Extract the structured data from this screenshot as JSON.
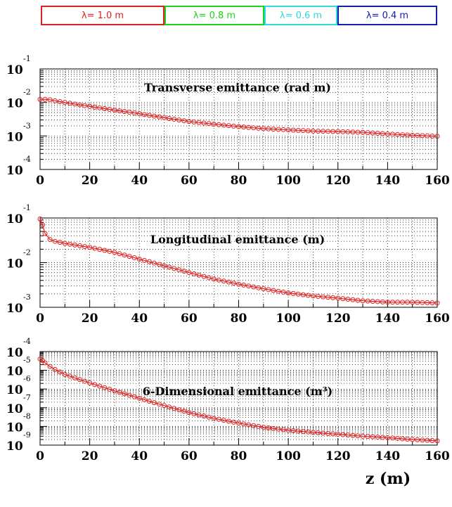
{
  "legend": [
    {
      "label": "λ= 1.0 m",
      "color": "#e02020"
    },
    {
      "label": "λ= 0.8 m",
      "color": "#20d020"
    },
    {
      "label": "λ= 0.6 m",
      "color": "#30d8e0"
    },
    {
      "label": "λ= 0.4 m",
      "color": "#1020b0"
    }
  ],
  "chart_data": [
    {
      "type": "scatter",
      "title": "Transverse emittance (rad m)",
      "xlabel": "",
      "ylabel": "",
      "log_y": true,
      "xlim": [
        0,
        160
      ],
      "ylim": [
        0.0001,
        0.1
      ],
      "x_ticks": [
        "0",
        "20",
        "40",
        "60",
        "80",
        "100",
        "120",
        "140",
        "160"
      ],
      "y_ticks": [
        {
          "base": "10",
          "exp": "-1"
        },
        {
          "base": "10",
          "exp": "-2"
        },
        {
          "base": "10",
          "exp": "-3"
        },
        {
          "base": "10",
          "exp": "-4"
        }
      ],
      "grid": true,
      "series": [
        {
          "color": "#e02020",
          "x": [
            0,
            2,
            4,
            6,
            10,
            20,
            30,
            40,
            50,
            60,
            70,
            80,
            90,
            100,
            110,
            120,
            130,
            140,
            150,
            160
          ],
          "values": [
            0.0123,
            0.0124,
            0.012,
            0.0112,
            0.01,
            0.0076,
            0.0059,
            0.0046,
            0.0035,
            0.0027,
            0.00225,
            0.0019,
            0.00165,
            0.00152,
            0.0014,
            0.00135,
            0.00128,
            0.00115,
            0.00105,
            0.00098
          ]
        }
      ]
    },
    {
      "type": "scatter",
      "title": "Longitudinal emittance (m)",
      "xlabel": "",
      "ylabel": "",
      "log_y": true,
      "xlim": [
        0,
        160
      ],
      "ylim": [
        0.001,
        0.1
      ],
      "x_ticks": [
        "0",
        "20",
        "40",
        "60",
        "80",
        "100",
        "120",
        "140",
        "160"
      ],
      "y_ticks": [
        {
          "base": "10",
          "exp": "-1"
        },
        {
          "base": "10",
          "exp": "-2"
        },
        {
          "base": "10",
          "exp": "-3"
        }
      ],
      "grid": true,
      "series": [
        {
          "color": "#e02020",
          "x": [
            0,
            1,
            2,
            4,
            6,
            10,
            20,
            30,
            40,
            50,
            60,
            70,
            80,
            90,
            100,
            110,
            120,
            130,
            140,
            150,
            160
          ],
          "values": [
            0.095,
            0.07,
            0.045,
            0.033,
            0.03,
            0.027,
            0.022,
            0.017,
            0.012,
            0.0085,
            0.006,
            0.0043,
            0.0033,
            0.0026,
            0.0021,
            0.0018,
            0.0016,
            0.0014,
            0.0013,
            0.0013,
            0.00125
          ]
        }
      ]
    },
    {
      "type": "scatter",
      "title": "6-Dimensional emittance (m³)",
      "xlabel": "z (m)",
      "ylabel": "",
      "log_y": true,
      "xlim": [
        0,
        160
      ],
      "ylim": [
        1e-09,
        0.0001
      ],
      "x_ticks": [
        "0",
        "20",
        "40",
        "60",
        "80",
        "100",
        "120",
        "140",
        "160"
      ],
      "y_ticks": [
        {
          "base": "10",
          "exp": "-4"
        },
        {
          "base": "10",
          "exp": "-5"
        },
        {
          "base": "10",
          "exp": "-6"
        },
        {
          "base": "10",
          "exp": "-7"
        },
        {
          "base": "10",
          "exp": "-8"
        },
        {
          "base": "10",
          "exp": "-9"
        }
      ],
      "grid": true,
      "series": [
        {
          "color": "#e02020",
          "x": [
            0,
            1,
            2,
            4,
            6,
            10,
            20,
            30,
            40,
            50,
            60,
            70,
            80,
            90,
            100,
            110,
            120,
            130,
            140,
            150,
            160
          ],
          "values": [
            4e-05,
            3.3e-05,
            2.5e-05,
            1.6e-05,
            1.1e-05,
            6e-06,
            2.1e-06,
            8e-07,
            3.2e-07,
            1.3e-07,
            5.5e-08,
            2.7e-08,
            1.5e-08,
            9e-09,
            6.2e-09,
            4.8e-09,
            3.8e-09,
            3e-09,
            2.5e-09,
            2e-09,
            1.7e-09
          ]
        }
      ]
    }
  ]
}
